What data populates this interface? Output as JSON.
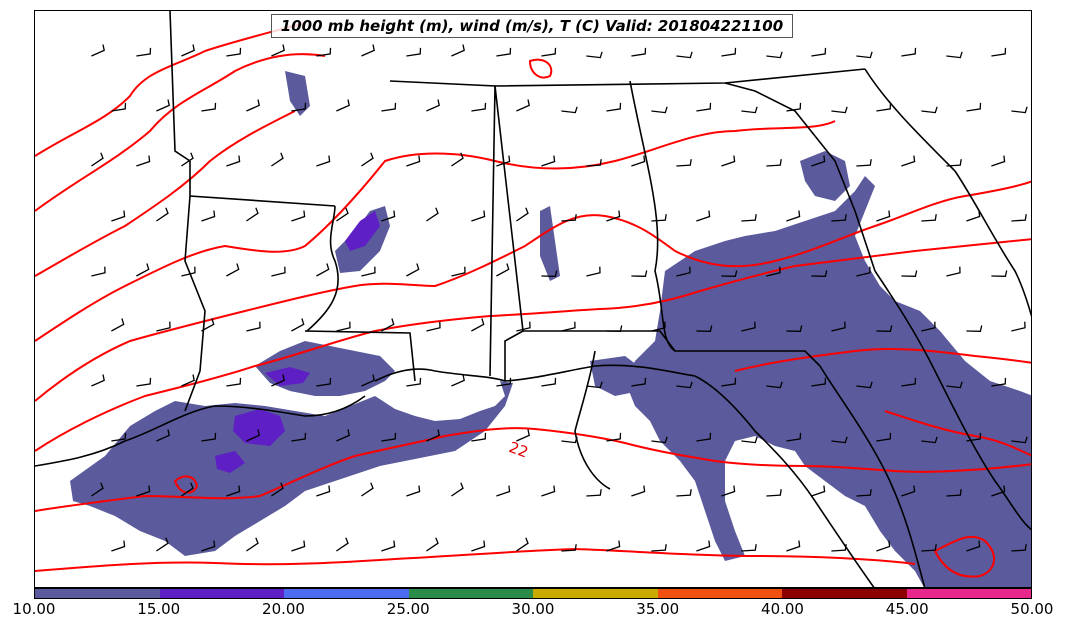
{
  "title": "1000 mb height (m), wind (m/s), T (C) Valid: 201804221100",
  "colorbar": {
    "ticks": [
      "10.00",
      "15.00",
      "20.00",
      "25.00",
      "30.00",
      "35.00",
      "40.00",
      "45.00",
      "50.00"
    ],
    "colors": [
      "#5a5a9c",
      "#5e1fc4",
      "#4c6cf0",
      "#2a8c48",
      "#c8aa00",
      "#f05010",
      "#8c0000",
      "#e8288c"
    ]
  },
  "contour_label": "22",
  "colors": {
    "shading_10_15": "#5a5a9c",
    "shading_15_20": "#5e1fc4",
    "temperature_contour": "#ff0000",
    "state_borders": "#000000"
  }
}
